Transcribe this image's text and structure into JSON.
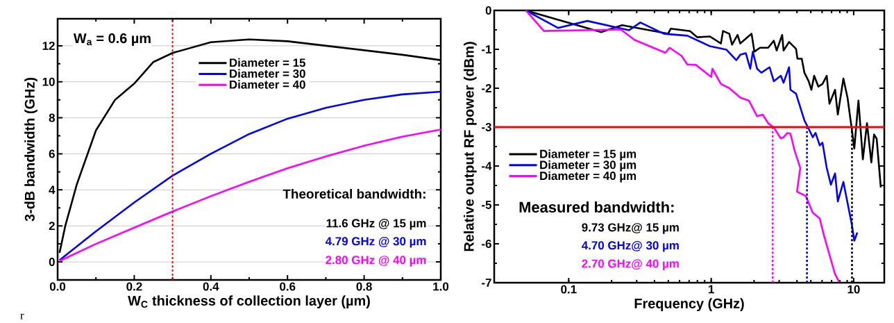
{
  "chart_data": [
    {
      "type": "line",
      "xlabel": "W$_{C}$  thickness of collection layer (µm)",
      "ylabel": "3-dB bandwidth (GHz)",
      "x": [
        0.005,
        0.02,
        0.05,
        0.1,
        0.15,
        0.2,
        0.25,
        0.3,
        0.4,
        0.5,
        0.6,
        0.7,
        0.8,
        0.9,
        1.0
      ],
      "series": [
        {
          "name": "Diameter = 15",
          "color": "#000000",
          "values": [
            0.5,
            2.0,
            4.3,
            7.3,
            9.0,
            9.9,
            11.1,
            11.6,
            12.2,
            12.35,
            12.25,
            12.0,
            11.75,
            11.5,
            11.2
          ]
        },
        {
          "name": "Diameter = 30",
          "color": "#0000ff",
          "x": [
            0.005,
            0.1,
            0.2,
            0.3,
            0.4,
            0.5,
            0.6,
            0.7,
            0.8,
            0.9,
            1.0
          ],
          "values": [
            0.1,
            1.7,
            3.3,
            4.79,
            6.0,
            7.1,
            7.95,
            8.55,
            9.0,
            9.3,
            9.45
          ]
        },
        {
          "name": "Diameter = 40",
          "color": "#ff00ff",
          "x": [
            0.005,
            0.1,
            0.2,
            0.3,
            0.4,
            0.5,
            0.6,
            0.7,
            0.8,
            0.9,
            1.0
          ],
          "values": [
            0.05,
            1.0,
            1.9,
            2.8,
            3.65,
            4.45,
            5.2,
            5.85,
            6.45,
            6.95,
            7.35
          ]
        }
      ],
      "xlim": [
        0,
        1
      ],
      "ylim": [
        -1,
        13.5
      ],
      "xticks": [
        {
          "value": 0,
          "label": "0.0"
        },
        0.2,
        0.4,
        0.6,
        0.8,
        {
          "value": 1,
          "label": "1.0"
        }
      ],
      "yticks": [
        0,
        2,
        4,
        6,
        8,
        10,
        12
      ],
      "grid": "y",
      "legend": "top",
      "ref_lines": [
        {
          "axis": "x",
          "value": 0.3,
          "color": "#ff0000",
          "line_style": "dashed"
        }
      ],
      "annotations": [
        "r",
        "W$_{a}$ = 0.6 µm",
        "Theoretical bandwidth:",
        "11.6 GHz @ 15 µm",
        "4.79 GHz @ 30 µm",
        "2.80 GHz @ 40 µm"
      ]
    },
    {
      "type": "line",
      "xlabel": "Frequency (GHz)",
      "ylabel": "Relative output RF power (dBm)",
      "log": "x",
      "series": [
        {
          "name": "Diameter = 15 µm",
          "color": "#000000",
          "x": [
            0.05,
            0.169,
            0.237,
            0.498,
            0.52,
            0.71,
            0.8,
            0.98,
            1.17,
            1.21,
            1.34,
            1.4,
            1.53,
            1.6,
            1.92,
            2.01,
            2.2,
            2.51,
            2.75,
            2.88,
            3.15,
            3.22,
            3.52,
            3.94,
            4.03,
            4.32,
            4.51,
            4.83,
            5.05,
            5.28,
            5.65,
            6.04,
            6.47,
            6.76,
            7.4,
            7.74,
            8.47,
            9.06,
            9.69,
            10.1,
            10.8,
            11.6,
            12.4,
            13.3,
            13.9,
            14.5,
            15.5
          ],
          "values": [
            0,
            -0.56,
            -0.38,
            -0.6,
            -0.47,
            -0.53,
            -0.69,
            -0.67,
            -0.85,
            -0.53,
            -0.6,
            -0.88,
            -0.63,
            -0.85,
            -0.6,
            -1.06,
            -0.96,
            -0.96,
            -0.78,
            -1.03,
            -0.63,
            -1.03,
            -0.81,
            -0.99,
            -1.24,
            -1.24,
            -1.6,
            -1.82,
            -2.04,
            -1.68,
            -1.96,
            -1.89,
            -1.68,
            -2.4,
            -2.04,
            -2.68,
            -1.75,
            -2.25,
            -3.04,
            -3.55,
            -2.32,
            -3.83,
            -2.9,
            -3.91,
            -3.19,
            -3.3,
            -4.55
          ]
        },
        {
          "name": "Diameter = 30 µm",
          "color": "#0000ff",
          "x": [
            0.05,
            0.084,
            0.135,
            0.265,
            0.318,
            0.466,
            0.68,
            0.98,
            1.28,
            1.5,
            1.6,
            1.75,
            1.88,
            1.96,
            2.1,
            2.25,
            2.57,
            2.75,
            3.08,
            3.22,
            3.52,
            3.6,
            3.94,
            4.51,
            4.83,
            5.16,
            5.4,
            5.78,
            6.04,
            6.47,
            6.92,
            7.4,
            7.74,
            8.47,
            9.69,
            10.1,
            10.6
          ],
          "values": [
            0,
            -0.45,
            -0.27,
            -0.51,
            -0.31,
            -0.6,
            -0.65,
            -0.92,
            -1.01,
            -1.28,
            -1.14,
            -1.1,
            -1.5,
            -1.06,
            -1.5,
            -1.6,
            -1.46,
            -1.82,
            -1.68,
            -1.86,
            -1.46,
            -2.04,
            -2.14,
            -2.83,
            -3.04,
            -3.26,
            -3.15,
            -3.47,
            -3.4,
            -4.05,
            -4.48,
            -4.19,
            -4.91,
            -4.41,
            -5.49,
            -5.92,
            -5.71
          ]
        },
        {
          "name": "Diameter = 40 µm",
          "color": "#ff00ff",
          "x": [
            0.05,
            0.067,
            0.232,
            0.29,
            0.477,
            0.51,
            0.62,
            0.68,
            0.78,
            1.0,
            1.02,
            1.17,
            1.34,
            1.6,
            1.84,
            2.1,
            2.3,
            2.51,
            2.75,
            3.08,
            3.22,
            3.43,
            3.6,
            3.86,
            4.03,
            4.22,
            4.0,
            4.61,
            5.16,
            5.78,
            6.18,
            6.76,
            7.4,
            7.91
          ],
          "values": [
            0,
            -0.53,
            -0.49,
            -0.76,
            -1.09,
            -0.96,
            -1.17,
            -1.39,
            -1.4,
            -1.71,
            -1.5,
            -1.89,
            -2.0,
            -2.24,
            -2.32,
            -2.72,
            -2.68,
            -2.9,
            -3.01,
            -3.29,
            -3.26,
            -3.15,
            -3.17,
            -3.62,
            -3.83,
            -4.05,
            -4.66,
            -4.77,
            -5.2,
            -5.35,
            -5.78,
            -6.28,
            -6.78,
            -6.98
          ]
        },
        {
          "color": "#ff00ff",
          "line_style": "dashed",
          "x": [
            2.7,
            2.7
          ],
          "values": [
            -7,
            -3
          ]
        },
        {
          "color": "#0000ff",
          "line_style": "dashed",
          "x": [
            4.7,
            4.7
          ],
          "values": [
            -7,
            -3
          ]
        },
        {
          "color": "#000000",
          "line_style": "dashed",
          "x": [
            9.73,
            9.73
          ],
          "values": [
            -7,
            -3
          ]
        }
      ],
      "xlim": [
        0.03,
        16.4
      ],
      "ylim": [
        -7,
        0
      ],
      "xticks": [
        0.1,
        1,
        10
      ],
      "yticks": [
        0,
        -1,
        -2,
        -3,
        -4,
        -5,
        -6,
        -7
      ],
      "legend": "left",
      "ref_lines": [
        {
          "axis": "y",
          "value": -3,
          "color": "#ff0000",
          "line_style": "solid"
        }
      ],
      "annotations": [
        "Measured bandwidth:",
        "9.73 GHz@ 15 µm",
        "4.70 GHz@ 30 µm",
        "2.70 GHz@ 40 µm"
      ]
    }
  ]
}
